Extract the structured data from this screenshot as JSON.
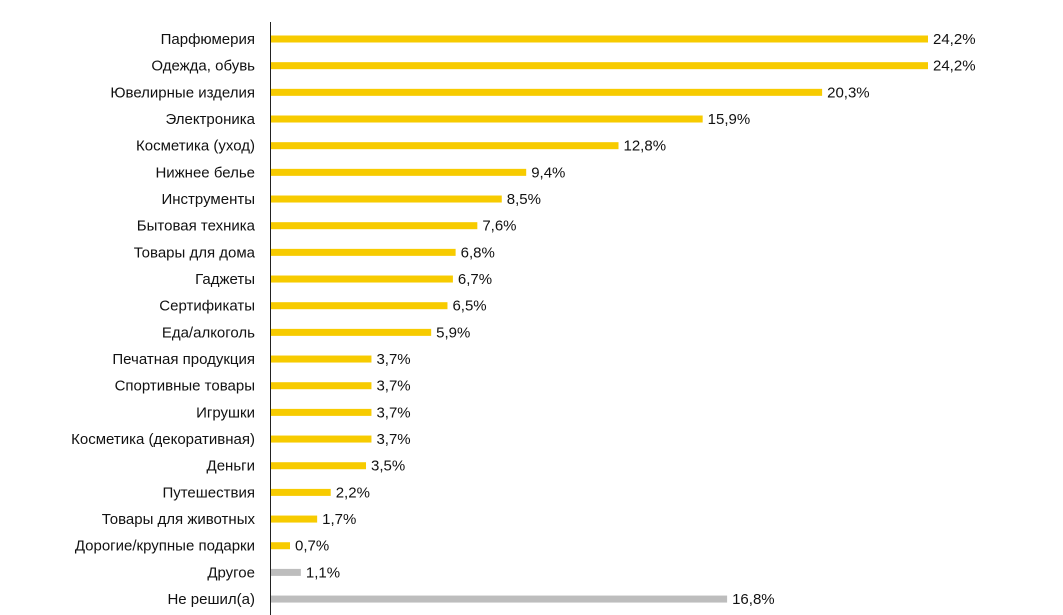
{
  "chart_data": {
    "type": "hbar",
    "categories": [
      "Парфюмерия",
      "Одежда, обувь",
      "Ювелирные изделия",
      "Электроника",
      "Косметика (уход)",
      "Нижнее белье",
      "Инструменты",
      "Бытовая техника",
      "Товары для дома",
      "Гаджеты",
      "Сертификаты",
      "Еда/алкоголь",
      "Печатная продукция",
      "Спортивные товары",
      "Игрушки",
      "Косметика (декоративная)",
      "Деньги",
      "Путешествия",
      "Товары для животных",
      "Дорогие/крупные подарки",
      "Другое",
      "Не решил(а)"
    ],
    "values": [
      24.2,
      24.2,
      20.3,
      15.9,
      12.8,
      9.4,
      8.5,
      7.6,
      6.8,
      6.7,
      6.5,
      5.9,
      3.7,
      3.7,
      3.7,
      3.7,
      3.5,
      2.2,
      1.7,
      0.7,
      1.1,
      16.8
    ],
    "value_labels": [
      "24,2%",
      "24,2%",
      "20,3%",
      "15,9%",
      "12,8%",
      "9,4%",
      "8,5%",
      "7,6%",
      "6,8%",
      "6,7%",
      "6,5%",
      "5,9%",
      "3,7%",
      "3,7%",
      "3,7%",
      "3,7%",
      "3,5%",
      "2,2%",
      "1,7%",
      "0,7%",
      "1,1%",
      "16,8%"
    ],
    "colors": [
      "#f7cb00",
      "#f7cb00",
      "#f7cb00",
      "#f7cb00",
      "#f7cb00",
      "#f7cb00",
      "#f7cb00",
      "#f7cb00",
      "#f7cb00",
      "#f7cb00",
      "#f7cb00",
      "#f7cb00",
      "#f7cb00",
      "#f7cb00",
      "#f7cb00",
      "#f7cb00",
      "#f7cb00",
      "#f7cb00",
      "#f7cb00",
      "#f7cb00",
      "#bdbdbd",
      "#bdbdbd"
    ]
  }
}
